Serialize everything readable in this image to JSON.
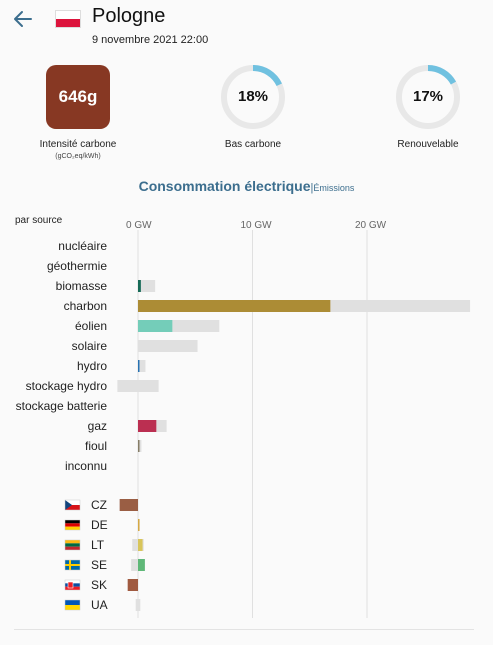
{
  "zone": {
    "name": "Pologne",
    "datetime": "9 novembre 2021 22:00"
  },
  "metrics": {
    "carbon_intensity": {
      "value": "646",
      "unit": "g",
      "label": "Intensité carbone",
      "sublabel": "(gCO₂eq/kWh)",
      "color": "#873823"
    },
    "low_carbon": {
      "value": "18%",
      "fraction": 0.18,
      "label": "Bas carbone"
    },
    "renewable": {
      "value": "17%",
      "fraction": 0.17,
      "label": "Renouvelable"
    }
  },
  "tabs": {
    "active": "Consommation électrique",
    "separator": "|",
    "other": "Émissions"
  },
  "chart_data": {
    "type": "bar",
    "title": "par source",
    "xlabel": "",
    "ylabel": "",
    "xlim": [
      -1.8,
      29
    ],
    "ticks": [
      {
        "value": 0,
        "label": "0 GW"
      },
      {
        "value": 10,
        "label": "10 GW"
      },
      {
        "value": 20,
        "label": "20 GW"
      }
    ],
    "sources": [
      {
        "name": "nucléaire",
        "production": 0,
        "capacity": 0,
        "color": "#aeb800"
      },
      {
        "name": "géothermie",
        "production": 0,
        "capacity": 0,
        "color": "#a2445c"
      },
      {
        "name": "biomasse",
        "production": 0.25,
        "capacity": 1.5,
        "color": "#166a57"
      },
      {
        "name": "charbon",
        "production": 16.8,
        "capacity": 29,
        "color": "#ac8c35"
      },
      {
        "name": "éolien",
        "production": 3.0,
        "capacity": 7.1,
        "color": "#74cdb9"
      },
      {
        "name": "solaire",
        "production": 0,
        "capacity": 5.2,
        "color": "#f27406"
      },
      {
        "name": "hydro",
        "production": 0.1,
        "capacity": 0.65,
        "color": "#2772b2"
      },
      {
        "name": "stockage hydro",
        "production": 0,
        "capacity": 1.8,
        "capacity_min": -1.8,
        "color": "#0052cc"
      },
      {
        "name": "stockage batterie",
        "production": 0,
        "capacity": 0,
        "color": "#b76fd4"
      },
      {
        "name": "gaz",
        "production": 1.6,
        "capacity": 2.5,
        "color": "#bb2f51"
      },
      {
        "name": "fioul",
        "production": 0.1,
        "capacity": 0.3,
        "color": "#867d66"
      },
      {
        "name": "inconnu",
        "production": 0,
        "capacity": 0,
        "color": "#acacac"
      }
    ],
    "exchanges": [
      {
        "code": "CZ",
        "value": -1.6,
        "capacity_min": -1.6,
        "capacity_max": 0,
        "color": "#9a5e44"
      },
      {
        "code": "DE",
        "value": 0.1,
        "capacity_min": 0,
        "capacity_max": 0.15,
        "color": "#d6a944"
      },
      {
        "code": "LT",
        "value": 0.4,
        "capacity_min": -0.5,
        "capacity_max": 0.5,
        "color": "#d8c55a"
      },
      {
        "code": "SE",
        "value": 0.6,
        "capacity_min": -0.6,
        "capacity_max": 0.6,
        "color": "#5fb878"
      },
      {
        "code": "SK",
        "value": -0.9,
        "capacity_min": -0.9,
        "capacity_max": 0,
        "color": "#a05a40"
      },
      {
        "code": "UA",
        "value": 0,
        "capacity_min": -0.2,
        "capacity_max": 0.2,
        "color": "#cccccc"
      }
    ],
    "capacity_color": "#e0e0e0"
  }
}
